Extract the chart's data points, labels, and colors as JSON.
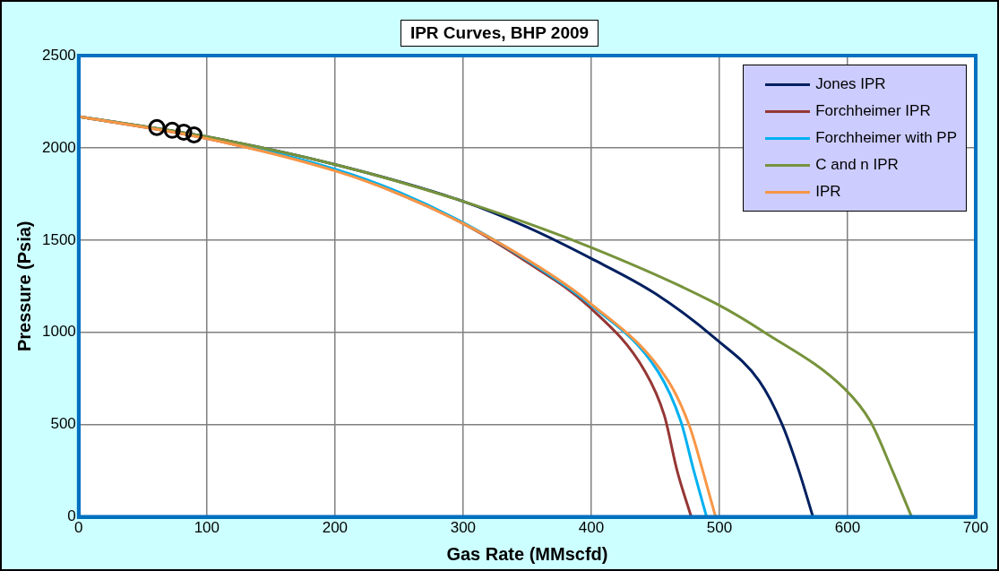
{
  "chart_data": {
    "type": "line",
    "title": "IPR Curves, BHP 2009",
    "xlabel": "Gas Rate (MMscfd)",
    "ylabel": "Pressure (Psia)",
    "xlim": [
      0,
      700
    ],
    "xticks": [
      0,
      100,
      200,
      300,
      400,
      500,
      600,
      700
    ],
    "ylim": [
      0,
      2500
    ],
    "yticks": [
      0,
      500,
      1000,
      1500,
      2000,
      2500
    ],
    "grid": true,
    "legend": "top right",
    "marker": "none",
    "line_style": "solid",
    "series": [
      {
        "name": "Jones IPR",
        "color": "#002060",
        "x": [
          0,
          100,
          200,
          300,
          350,
          400,
          450,
          497,
          531,
          549,
          562,
          573
        ],
        "values": [
          2170,
          2060,
          1910,
          1710,
          1570,
          1400,
          1210,
          965,
          737,
          500,
          250,
          0
        ]
      },
      {
        "name": "Forchheimer IPR",
        "color": "#953735",
        "x": [
          0,
          100,
          200,
          250,
          300,
          350,
          398,
          442,
          457,
          467,
          478
        ],
        "values": [
          2170,
          2050,
          1880,
          1750,
          1590,
          1380,
          1141,
          788,
          550,
          250,
          0
        ]
      },
      {
        "name": "Forchheimer with PP",
        "color": "#00b0f0",
        "x": [
          0,
          100,
          200,
          250,
          300,
          350,
          398,
          452,
          470,
          480,
          490
        ],
        "values": [
          2170,
          2055,
          1885,
          1760,
          1595,
          1390,
          1157,
          788,
          515,
          250,
          0
        ]
      },
      {
        "name": "C and n IPR",
        "color": "#77933c",
        "x": [
          0,
          100,
          200,
          300,
          400,
          497,
          534,
          598,
          618,
          635,
          650
        ],
        "values": [
          2170,
          2060,
          1910,
          1710,
          1460,
          1157,
          1005,
          692,
          515,
          250,
          0
        ]
      },
      {
        "name": "IPR",
        "color": "#f79646",
        "x": [
          0,
          100,
          200,
          250,
          300,
          350,
          398,
          460,
          477,
          487,
          497
        ],
        "values": [
          2170,
          2050,
          1875,
          1750,
          1590,
          1395,
          1165,
          737,
          485,
          250,
          0
        ]
      },
      {
        "type": "scatter",
        "color": "#000000",
        "marker": "circle",
        "x": [
          61,
          73,
          82,
          90
        ],
        "values": [
          2110,
          2095,
          2085,
          2070
        ]
      }
    ]
  }
}
